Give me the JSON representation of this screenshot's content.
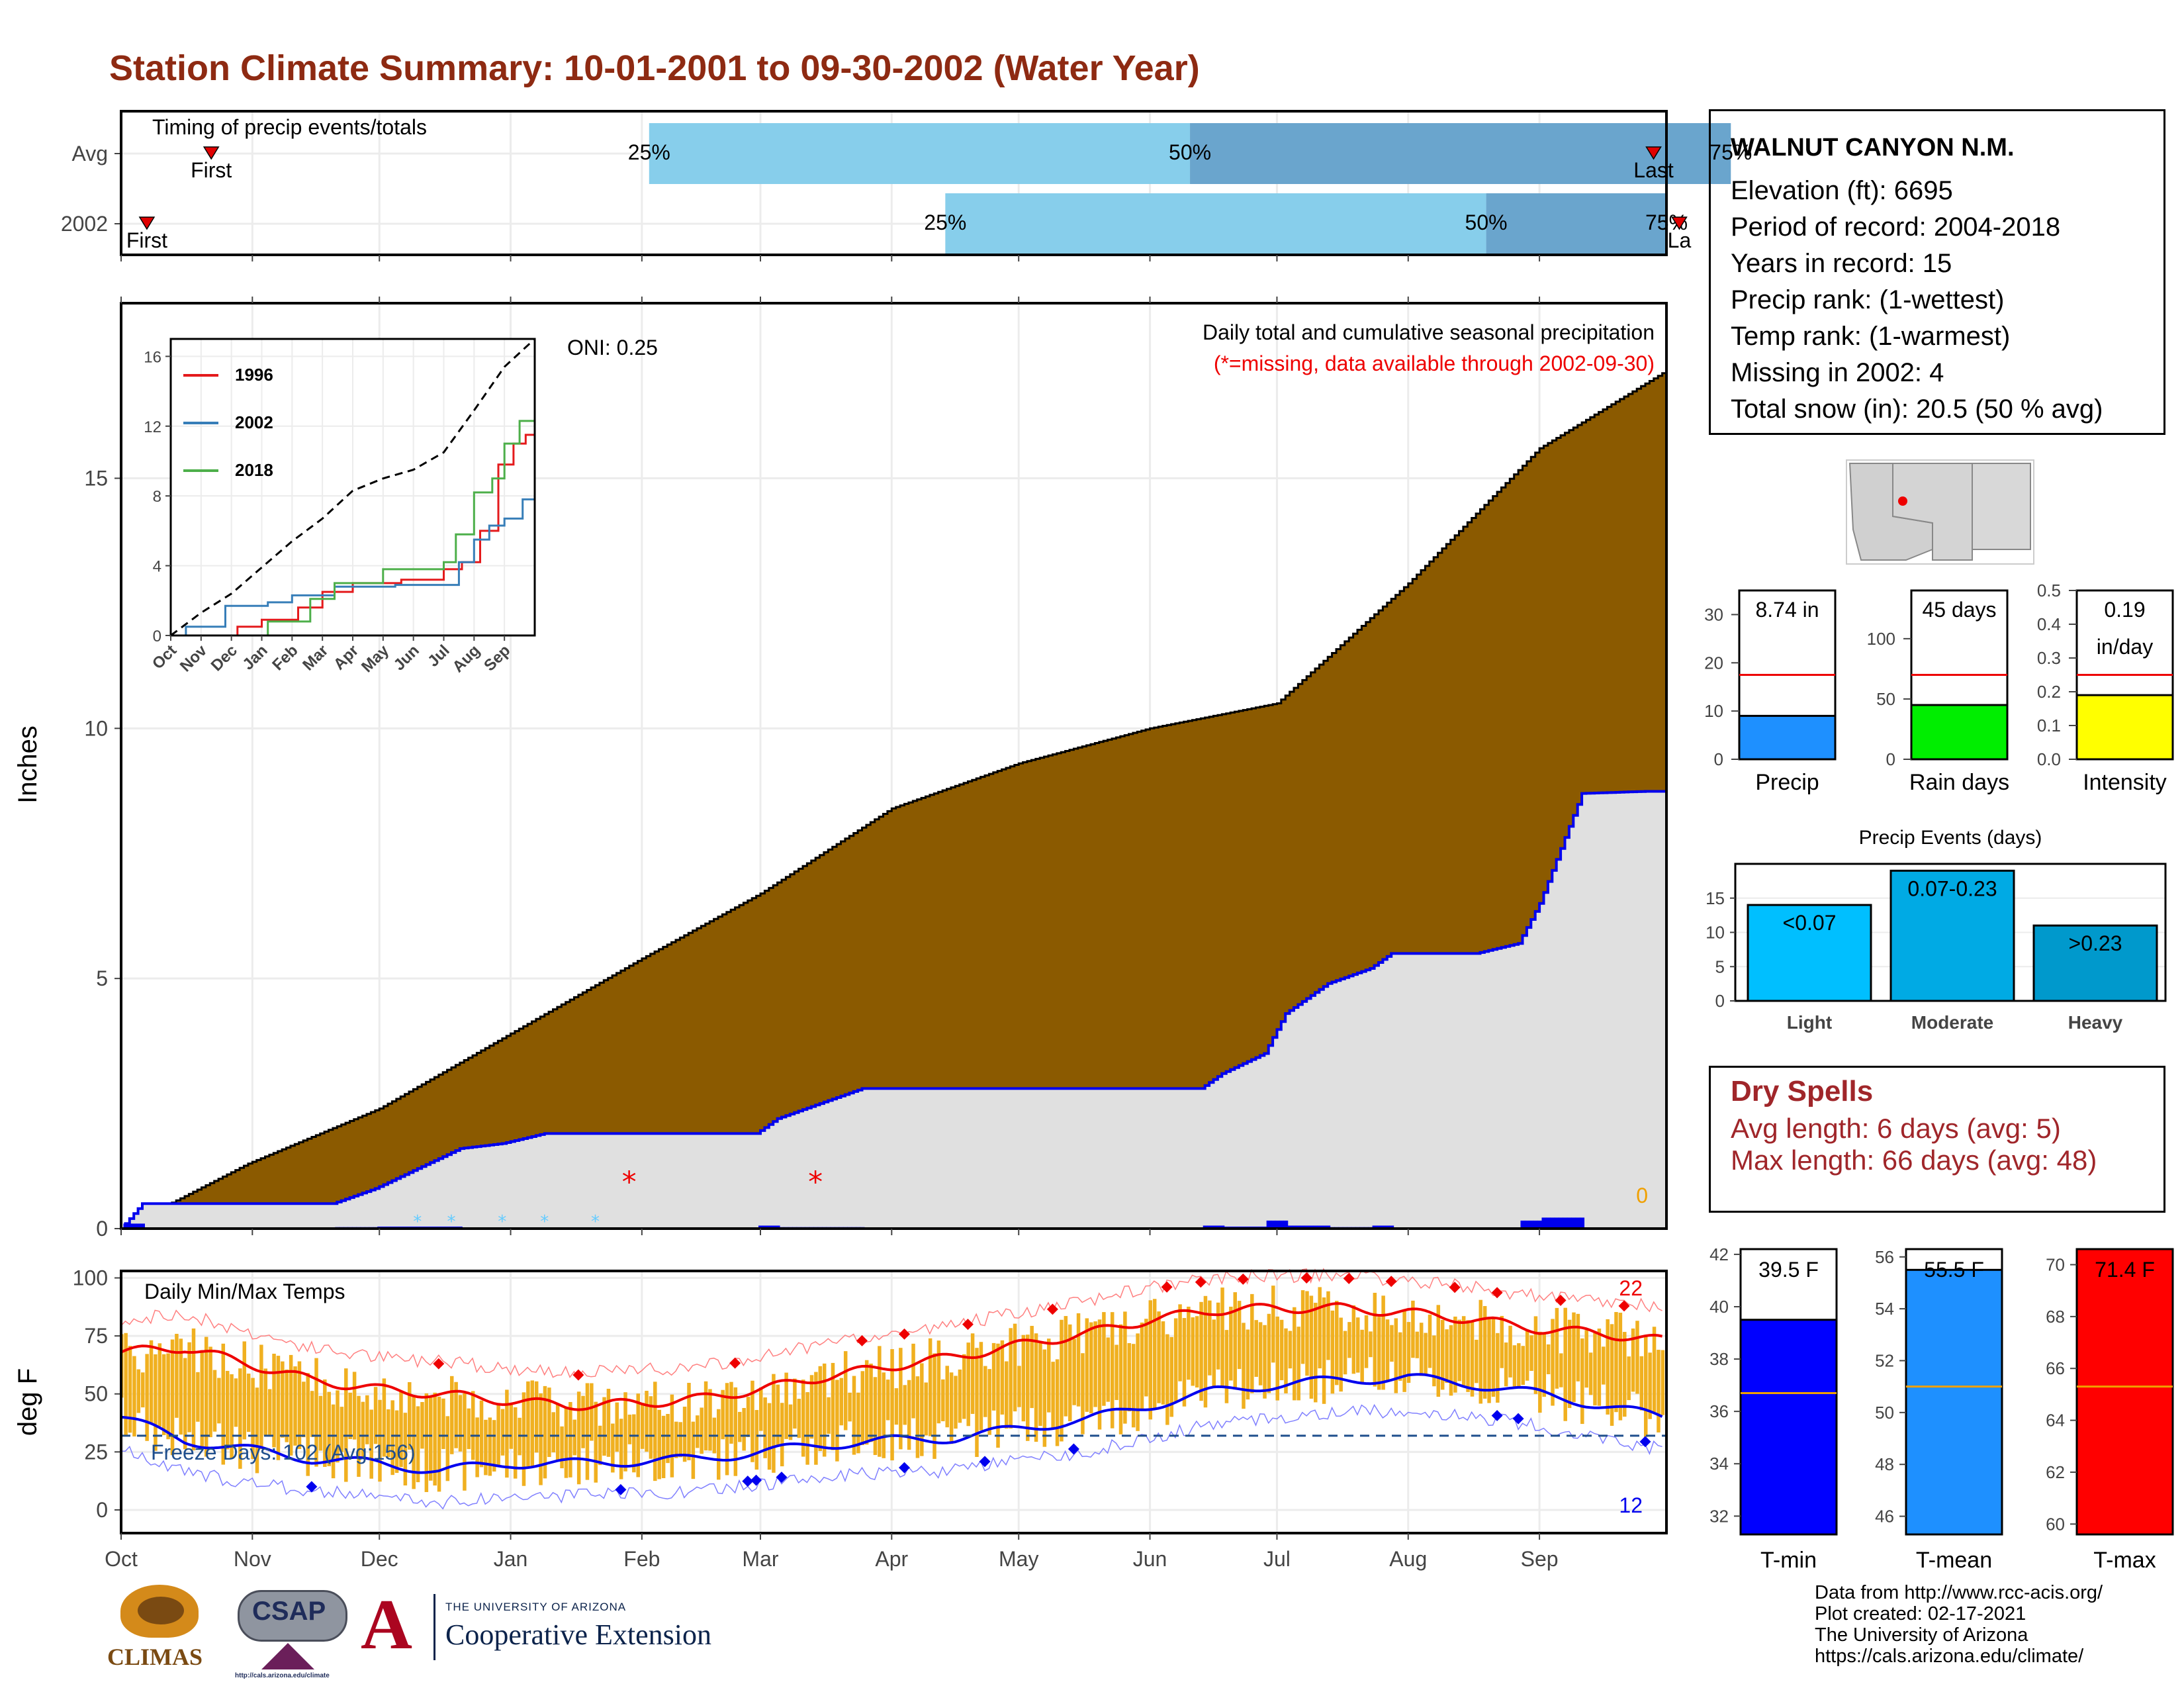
{
  "title": "Station Climate Summary: 10-01-2001 to 09-30-2002 (Water Year)",
  "colors": {
    "title": "#8e2a12",
    "cumulative_fill": "#8B5A00",
    "current_fill": "#e0e0e0",
    "current_line": "#0000ee",
    "temp_bars": "#f0b020",
    "tmax_line": "#ee0000",
    "tmin_line": "#0000ee",
    "timing_light": "#87ceeb",
    "timing_dark": "#6aa5cd",
    "dry_text": "#a0262a"
  },
  "month_labels": [
    "Oct",
    "Nov",
    "Dec",
    "Jan",
    "Feb",
    "Mar",
    "Apr",
    "May",
    "Jun",
    "Jul",
    "Aug",
    "Sep"
  ],
  "timing": {
    "title": "Timing of precip events/totals",
    "rows": [
      {
        "label": "Avg",
        "first": 0.7,
        "q25": 4.1,
        "q50": 8.3,
        "q75": 12.5,
        "last": 11.9,
        "first_label": "First",
        "last_label": "Last",
        "p25": "25%",
        "p50": "50%",
        "p75": "75%"
      },
      {
        "label": "2002",
        "first": 0.2,
        "q25": 6.4,
        "q50": 10.6,
        "q75": 12.0,
        "last": 12.1,
        "first_label": "First",
        "last_label": "La",
        "p25": "25%",
        "p50": "50%",
        "p75": "75%"
      }
    ]
  },
  "station": {
    "name": "WALNUT CANYON N.M.",
    "lines": [
      "Elevation (ft): 6695",
      "Period of record: 2004-2018",
      "Years in record: 15",
      "Precip rank:  (1-wettest)",
      "Temp rank:  (1-warmest)",
      "Missing in 2002: 4",
      "Total snow (in): 20.5 (50 % avg)"
    ]
  },
  "main": {
    "ylabel": "Inches",
    "caption1": "Daily total and cumulative seasonal precipitation",
    "caption2": "(*=missing, data available through 2002-09-30)",
    "oni": "ONI: 0.25",
    "zero_label": "0",
    "yticks": [
      "0",
      "5",
      "10",
      "15"
    ]
  },
  "inset": {
    "legend": [
      "1996",
      "2002",
      "2018"
    ],
    "legend_colors": [
      "#e41a1c",
      "#377eb8",
      "#4daf4a"
    ],
    "yticks": [
      "0",
      "4",
      "8",
      "12",
      "16"
    ],
    "xticks": [
      "Oct",
      "Nov",
      "Dec",
      "Jan",
      "Feb",
      "Mar",
      "Apr",
      "May",
      "Jun",
      "Jul",
      "Aug",
      "Sep"
    ]
  },
  "precip_bars": {
    "items": [
      {
        "value": "8.74 in",
        "label": "Precip",
        "ticks": [
          "0",
          "10",
          "20",
          "30"
        ],
        "max": 35,
        "val": 9,
        "avg": 17.5,
        "color": "#1e90ff",
        "unit": ""
      },
      {
        "value": "45 days",
        "label": "Rain days",
        "ticks": [
          "0",
          "50",
          "100"
        ],
        "max": 140,
        "val": 45,
        "avg": 70,
        "color": "#00ee00",
        "unit": ""
      },
      {
        "value": "0.19",
        "unit": "in/day",
        "label": "Intensity",
        "ticks": [
          "0.0",
          "0.1",
          "0.2",
          "0.3",
          "0.4",
          "0.5"
        ],
        "max": 0.5,
        "val": 0.19,
        "avg": 0.25,
        "color": "#ffff00"
      }
    ]
  },
  "precip_events": {
    "title": "Precip Events (days)",
    "categories": [
      "Light",
      "Moderate",
      "Heavy"
    ],
    "bar_labels": [
      "<0.07",
      "0.07-0.23",
      ">0.23"
    ],
    "values": [
      14,
      19,
      11
    ],
    "colors": [
      "#00bfff",
      "#00aae4",
      "#0099cc"
    ],
    "yticks": [
      "0",
      "5",
      "10",
      "15"
    ]
  },
  "dry_spells": {
    "title": "Dry Spells",
    "avg_length": "Avg length: 6 days (avg: 5)",
    "max_length": "Max length: 66 days (avg: 48)"
  },
  "temps": {
    "title": "Daily Min/Max Temps",
    "ylabel": "deg F",
    "freeze": "Freeze Days: 102 (Avg:156)",
    "high_count": "22",
    "low_count": "12",
    "yticks": [
      "0",
      "25",
      "50",
      "75",
      "100"
    ]
  },
  "temp_bars": [
    {
      "label": "T-min",
      "value": "39.5 F",
      "ticks": [
        "32",
        "34",
        "36",
        "38",
        "40",
        "42"
      ],
      "min": 31.3,
      "max": 42.2,
      "val": 39.5,
      "avg": 36.7,
      "color": "#0000ff"
    },
    {
      "label": "T-mean",
      "value": "55.5 F",
      "ticks": [
        "46",
        "48",
        "50",
        "52",
        "54",
        "56"
      ],
      "min": 45.3,
      "max": 56.3,
      "val": 55.5,
      "avg": 51.0,
      "color": "#1e90ff"
    },
    {
      "label": "T-max",
      "value": "71.4 F",
      "ticks": [
        "60",
        "62",
        "64",
        "66",
        "68",
        "70"
      ],
      "min": 59.6,
      "max": 70.6,
      "val": 70.6,
      "avg": 65.3,
      "color": "#ff0000"
    }
  ],
  "credits": [
    "Data from http://www.rcc-acis.org/",
    "Plot created: 02-17-2021",
    "The University of Arizona",
    "https://cals.arizona.edu/climate/"
  ],
  "logos": {
    "climas": "CLIMAS",
    "csap": "CSAP",
    "csap_url": "http://cals.arizona.edu/climate",
    "ua_small": "THE UNIVERSITY OF ARIZONA",
    "ua_big": "Cooperative Extension",
    "ua_letter": "A"
  },
  "chart_data": [
    {
      "type": "area",
      "title": "Daily total and cumulative seasonal precipitation",
      "ylabel": "Inches",
      "ylim": [
        0,
        18.5
      ],
      "x_months": [
        "Oct",
        "Nov",
        "Dec",
        "Jan",
        "Feb",
        "Mar",
        "Apr",
        "May",
        "Jun",
        "Jul",
        "Aug",
        "Sep"
      ],
      "series": [
        {
          "name": "cumulative average",
          "x_day": [
            0,
            30,
            61,
            92,
            123,
            151,
            182,
            212,
            243,
            273,
            304,
            335,
            364
          ],
          "values": [
            0,
            1.3,
            2.4,
            3.9,
            5.4,
            6.7,
            8.4,
            9.3,
            10.0,
            10.5,
            12.9,
            15.6,
            17.1
          ]
        },
        {
          "name": "2002 cumulative",
          "x_day": [
            0,
            5,
            50,
            60,
            70,
            80,
            90,
            100,
            150,
            155,
            175,
            220,
            255,
            260,
            270,
            275,
            285,
            295,
            300,
            320,
            330,
            335,
            340,
            345,
            360,
            364
          ],
          "values": [
            0,
            0.5,
            0.5,
            0.8,
            1.2,
            1.6,
            1.7,
            1.9,
            1.9,
            2.2,
            2.8,
            2.8,
            2.8,
            3.1,
            3.5,
            4.3,
            4.9,
            5.2,
            5.5,
            5.5,
            5.7,
            6.5,
            7.6,
            8.7,
            8.74,
            8.74
          ]
        }
      ]
    },
    {
      "type": "line",
      "title": "Daily Min/Max Temps",
      "ylabel": "deg F",
      "ylim": [
        -10,
        103
      ],
      "x_day": [
        0,
        15,
        30,
        45,
        61,
        75,
        92,
        105,
        123,
        137,
        151,
        165,
        182,
        197,
        212,
        228,
        243,
        258,
        273,
        288,
        304,
        320,
        335,
        350,
        364
      ],
      "series": [
        {
          "name": "avg max",
          "values": [
            68,
            70,
            63,
            56,
            52,
            50,
            47,
            45,
            46,
            48,
            52,
            57,
            62,
            66,
            71,
            76,
            82,
            86,
            87,
            87,
            85,
            82,
            78,
            76,
            73
          ]
        },
        {
          "name": "avg min",
          "values": [
            40,
            30,
            26,
            22,
            20,
            17,
            20,
            20,
            21,
            22,
            25,
            28,
            30,
            31,
            35,
            39,
            45,
            51,
            54,
            56,
            57,
            54,
            50,
            45,
            40
          ]
        }
      ]
    },
    {
      "type": "bar",
      "title": "Precip Events (days)",
      "categories": [
        "Light",
        "Moderate",
        "Heavy"
      ],
      "values": [
        14,
        19,
        11
      ]
    }
  ]
}
